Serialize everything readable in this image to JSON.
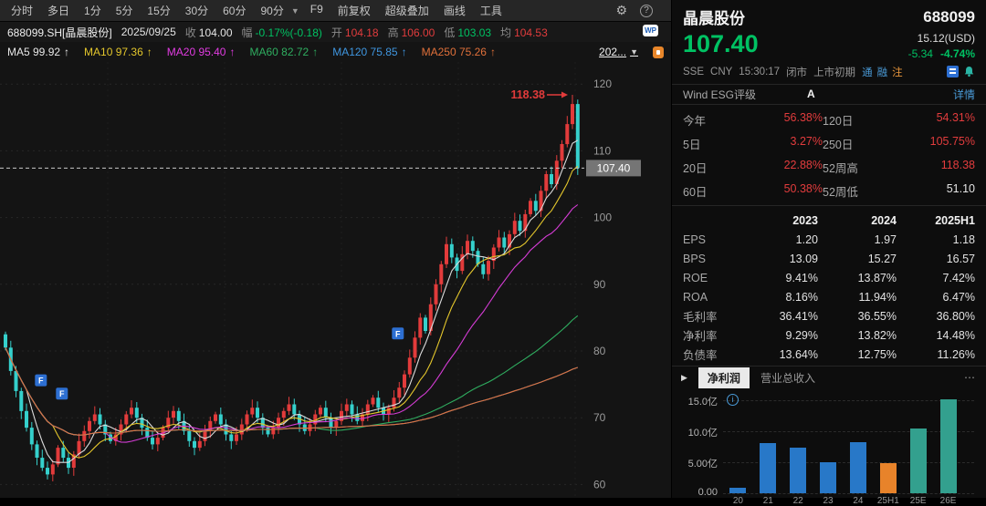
{
  "toolbar": {
    "items": [
      "分时",
      "多日",
      "1分",
      "5分",
      "15分",
      "30分",
      "60分",
      "90分"
    ],
    "dropdown": "▼",
    "actions": [
      "F9",
      "前复权",
      "超级叠加",
      "画线",
      "工具"
    ],
    "gear": "⚙",
    "help": "?"
  },
  "infobar": {
    "symbol": "688099.SH[晶晨股份]",
    "date": "2025/09/25",
    "fields": [
      {
        "label": "收",
        "value": "104.00",
        "cls": "white"
      },
      {
        "label": "幅",
        "value": "-0.17%(-0.18)",
        "cls": "green"
      },
      {
        "label": "开",
        "value": "104.18",
        "cls": "red"
      },
      {
        "label": "高",
        "value": "106.00",
        "cls": "red"
      },
      {
        "label": "低",
        "value": "103.03",
        "cls": "green"
      },
      {
        "label": "均",
        "value": "104.53",
        "cls": "red"
      }
    ],
    "wp": "WP"
  },
  "mabar": {
    "items": [
      {
        "label": "MA5",
        "value": "99.92",
        "color": "#e8e8e8"
      },
      {
        "label": "MA10",
        "value": "97.36",
        "color": "#e3c62c"
      },
      {
        "label": "MA20",
        "value": "95.40",
        "color": "#e23ce2"
      },
      {
        "label": "MA60",
        "value": "82.72",
        "color": "#2fae60"
      },
      {
        "label": "MA120",
        "value": "75.85",
        "color": "#3f96e0"
      },
      {
        "label": "MA250",
        "value": "75.26",
        "color": "#e0703a"
      }
    ],
    "arrow": "↑",
    "period": "202...",
    "period_dropdown": "▼"
  },
  "chart_data": {
    "main": {
      "type": "candlestick",
      "symbol": "688099.SH",
      "y_ticks": [
        120,
        110,
        100,
        90,
        80,
        70,
        60
      ],
      "price_min": 58,
      "price_max": 123.3,
      "first_open": 82.5,
      "closes": [
        80.5,
        77,
        74,
        71,
        68.5,
        66,
        64,
        62.5,
        61.5,
        63,
        65.5,
        64,
        62.5,
        64.5,
        66.5,
        68,
        69.5,
        70.5,
        69,
        67.5,
        66.5,
        67.5,
        69,
        70.5,
        71.5,
        70,
        68.5,
        67,
        66,
        67,
        68.5,
        70,
        71,
        69.5,
        68,
        66.5,
        65.5,
        66.5,
        68,
        69.5,
        70.5,
        69,
        67.5,
        66.5,
        67.5,
        69,
        70.5,
        71.5,
        70,
        68.5,
        67.5,
        68.5,
        70,
        71,
        72,
        70.5,
        69,
        68,
        69,
        70.5,
        71.5,
        70,
        68.5,
        69.5,
        71,
        72,
        70.5,
        69.5,
        70.5,
        72,
        73,
        71.5,
        70.5,
        71.5,
        73,
        74.5,
        76.5,
        79,
        82,
        85,
        83,
        87,
        90,
        93,
        96,
        94,
        92,
        94.5,
        96.5,
        95,
        93,
        91.5,
        93.5,
        95.5,
        97,
        95.5,
        97.5,
        99.5,
        98,
        100.5,
        102.5,
        101,
        104,
        106.5,
        105,
        108.5,
        111,
        114,
        117,
        107.4
      ],
      "peak": {
        "index": 108,
        "price": 118.38
      },
      "annotation": "118.38",
      "current_price": 107.4,
      "current_price_label": "107.40",
      "up_color": "#e23b3b",
      "down_color": "#35d0cc",
      "ma_periods": [
        5,
        10,
        20,
        60,
        120,
        250
      ],
      "ma_colors": [
        "#dcdcdc",
        "#e3c62c",
        "#d63cd6",
        "#2fae60",
        "#3f96e0",
        "#e0703a"
      ],
      "flag_label": "F",
      "flags": [
        {
          "index": 7,
          "price": 76.5
        },
        {
          "index": 11,
          "price": 74.5
        },
        {
          "index": 75,
          "price": 83.5
        }
      ]
    },
    "profit": {
      "type": "bar",
      "tabs": [
        "净利润",
        "营业总收入"
      ],
      "selected_tab": 0,
      "expand_arrow": "▶",
      "info_icon": "i",
      "categories": [
        "20",
        "21",
        "22",
        "23",
        "24",
        "25H1",
        "25E",
        "26E"
      ],
      "values": [
        0.8,
        8.1,
        7.3,
        5.0,
        8.2,
        4.9,
        10.5,
        15.2
      ],
      "colors": [
        "#2878c8",
        "#2878c8",
        "#2878c8",
        "#2878c8",
        "#2878c8",
        "#e8832a",
        "#33a08e",
        "#33a08e"
      ],
      "y_ticks": [
        {
          "v": 15,
          "label": "15.0亿"
        },
        {
          "v": 10,
          "label": "10.0亿"
        },
        {
          "v": 5,
          "label": "5.00亿"
        },
        {
          "v": 0,
          "label": "0.00"
        }
      ],
      "ylim": [
        0,
        15.5
      ],
      "unit": "亿"
    }
  },
  "quote": {
    "name": "晶晨股份",
    "code": "688099",
    "price": "107.40",
    "usd": "15.12(USD)",
    "change": "-5.34",
    "change_pct": "-4.74%",
    "exchange": "SSE",
    "currency": "CNY",
    "time": "15:30:17",
    "session": "闭市",
    "stage": "上市初期",
    "badges": [
      {
        "text": "通",
        "color": "#4a9bd8"
      },
      {
        "text": "融",
        "color": "#4a9bd8"
      },
      {
        "text": "注",
        "color": "#e8963c"
      }
    ],
    "esg": {
      "label": "Wind ESG评级",
      "rating": "A",
      "link": "详情"
    },
    "perf": [
      {
        "l1": "今年",
        "v1": "56.38%",
        "c1": "red",
        "l2": "120日",
        "v2": "54.31%",
        "c2": "red"
      },
      {
        "l1": "5日",
        "v1": "3.27%",
        "c1": "red",
        "l2": "250日",
        "v2": "105.75%",
        "c2": "red"
      },
      {
        "l1": "20日",
        "v1": "22.88%",
        "c1": "red",
        "l2": "52周高",
        "v2": "118.38",
        "c2": "red"
      },
      {
        "l1": "60日",
        "v1": "50.38%",
        "c1": "red",
        "l2": "52周低",
        "v2": "51.10",
        "c2": "white"
      }
    ]
  },
  "financials": {
    "years": [
      "2023",
      "2024",
      "2025H1"
    ],
    "rows": [
      {
        "label": "EPS",
        "values": [
          "1.20",
          "1.97",
          "1.18"
        ]
      },
      {
        "label": "BPS",
        "values": [
          "13.09",
          "15.27",
          "16.57"
        ]
      },
      {
        "label": "ROE",
        "values": [
          "9.41%",
          "13.87%",
          "7.42%"
        ]
      },
      {
        "label": "ROA",
        "values": [
          "8.16%",
          "11.94%",
          "6.47%"
        ]
      },
      {
        "label": "毛利率",
        "values": [
          "36.41%",
          "36.55%",
          "36.80%"
        ]
      },
      {
        "label": "净利率",
        "values": [
          "9.29%",
          "13.82%",
          "14.48%"
        ]
      },
      {
        "label": "负债率",
        "values": [
          "13.64%",
          "12.75%",
          "11.26%"
        ]
      }
    ],
    "more": "⋯"
  }
}
